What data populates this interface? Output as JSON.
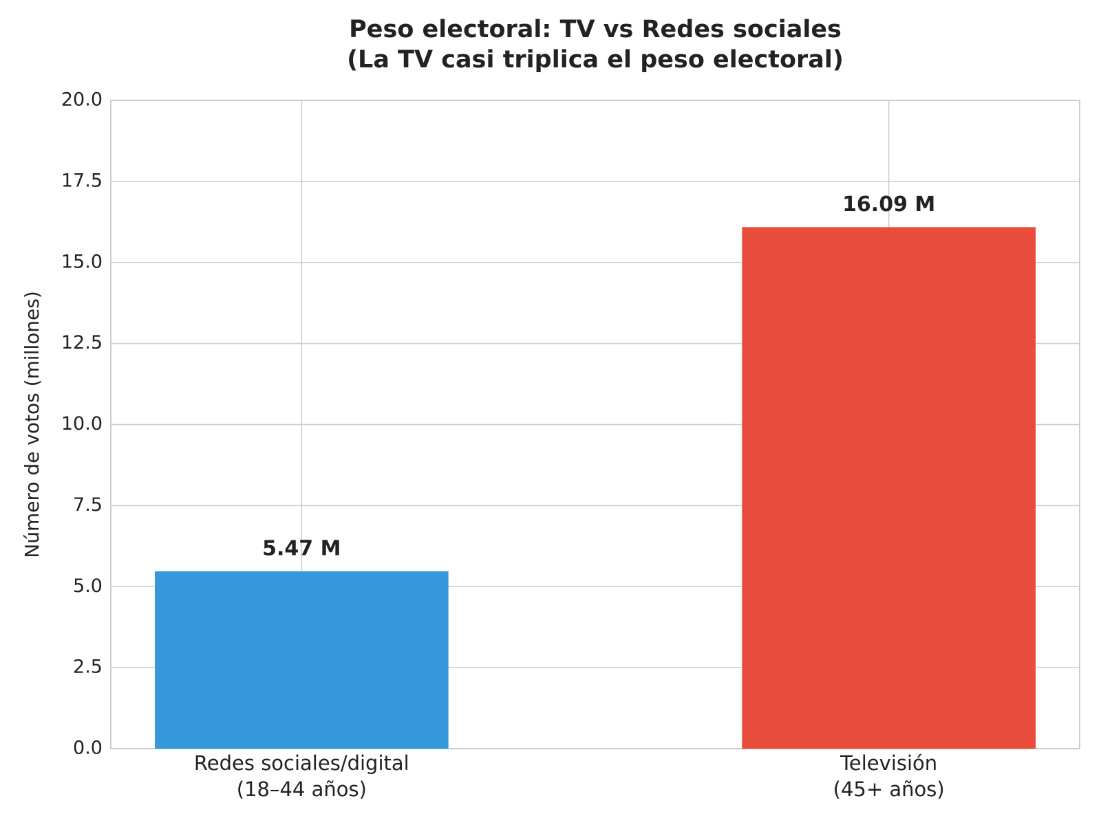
{
  "chart_data": {
    "type": "bar",
    "title": "Peso electoral: TV vs Redes sociales\n(La TV casi triplica el peso electoral)",
    "y_label": "Número de votos (millones)",
    "categories": [
      "Redes sociales/digital\n(18–44 años)",
      "Televisión\n(45+ años)"
    ],
    "values": [
      5.47,
      16.09
    ],
    "value_labels": [
      "5.47 M",
      "16.09 M"
    ],
    "colors": [
      "#3498db",
      "#e74c3c"
    ],
    "ylim": [
      0,
      20
    ],
    "yticks": [
      {
        "value": 0,
        "label": "0.0"
      },
      2.5,
      {
        "value": 5,
        "label": "5.0"
      },
      7.5,
      {
        "value": 10,
        "label": "10.0"
      },
      12.5,
      {
        "value": 15,
        "label": "15.0"
      },
      17.5,
      {
        "value": 20,
        "label": "20.0"
      }
    ],
    "grid": true
  }
}
